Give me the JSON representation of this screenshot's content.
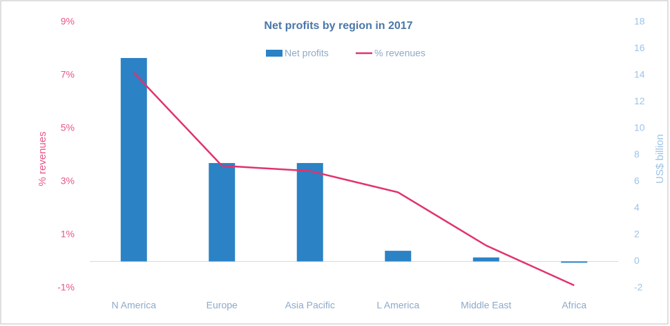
{
  "chart_data": {
    "type": "bar_line",
    "title": "Net profits by region in 2017",
    "categories": [
      "N America",
      "Europe",
      "Asia Pacific",
      "L America",
      "Middle East",
      "Africa"
    ],
    "series": [
      {
        "name": "Net profits",
        "type": "bar",
        "color": "#2b82c5",
        "axis": "y2",
        "values": [
          15.3,
          7.4,
          7.4,
          0.8,
          0.3,
          -0.1
        ]
      },
      {
        "name": "% revenues",
        "type": "line",
        "color": "#e0336e",
        "axis": "y",
        "values": [
          7.1,
          3.6,
          3.4,
          2.6,
          0.6,
          -0.9
        ]
      }
    ],
    "ylabel": "% revenues",
    "y2label": "US$ billion",
    "ylim": [
      -1,
      9
    ],
    "yticks": [
      {
        "value": -1,
        "label": "-1%"
      },
      {
        "value": 1,
        "label": "1%"
      },
      {
        "value": 3,
        "label": "3%"
      },
      {
        "value": 5,
        "label": "5%"
      },
      {
        "value": 7,
        "label": "7%"
      },
      {
        "value": 9,
        "label": "9%"
      }
    ],
    "y2lim": [
      -2,
      18
    ],
    "y2ticks": [
      -2,
      0,
      2,
      4,
      6,
      8,
      10,
      12,
      14,
      16,
      18
    ],
    "legend": "top"
  }
}
